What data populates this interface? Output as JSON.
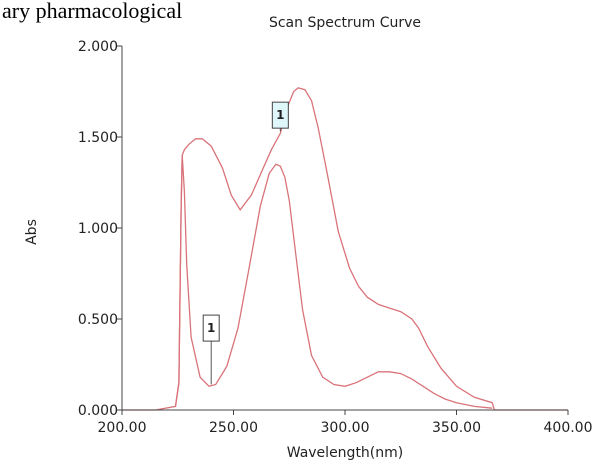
{
  "header_text": "ary pharmacological",
  "chart_data": {
    "type": "line",
    "title": "Scan Spectrum Curve",
    "xlabel": "Wavelength(nm)",
    "ylabel": "Abs",
    "xlim": [
      200,
      400
    ],
    "ylim": [
      0,
      2
    ],
    "x_ticks": [
      "200.00",
      "250.00",
      "300.00",
      "350.00",
      "400.00"
    ],
    "y_ticks": [
      "0.000",
      "0.500",
      "1.000",
      "1.500",
      "2.000"
    ],
    "grid": false,
    "legend": "none",
    "line_color": "#d9737a",
    "series": [
      {
        "x": [
          200,
          215,
          224,
          225.5,
          226.5,
          227,
          228,
          230,
          233,
          236,
          240,
          245,
          249,
          253,
          258,
          263,
          267,
          271,
          274,
          277,
          279,
          282,
          285,
          288,
          292,
          297,
          302,
          306,
          310,
          315,
          320,
          325,
          330,
          333,
          337,
          343,
          350,
          358,
          366,
          367,
          400
        ],
        "y": [
          0,
          0,
          0.02,
          0.15,
          1.1,
          1.4,
          1.43,
          1.46,
          1.49,
          1.49,
          1.45,
          1.33,
          1.18,
          1.1,
          1.18,
          1.32,
          1.43,
          1.52,
          1.66,
          1.75,
          1.77,
          1.76,
          1.7,
          1.55,
          1.3,
          0.98,
          0.78,
          0.68,
          0.62,
          0.58,
          0.56,
          0.54,
          0.5,
          0.45,
          0.35,
          0.23,
          0.13,
          0.07,
          0.04,
          0,
          0
        ]
      },
      {
        "x": [
          224,
          225.5,
          226.5,
          227,
          228,
          229,
          231,
          235,
          239,
          242,
          247,
          252,
          257,
          262,
          266,
          269,
          271,
          273,
          275,
          278,
          281,
          285,
          290,
          295,
          300,
          305,
          310,
          315,
          320,
          325,
          330,
          335,
          340,
          345,
          350,
          358,
          366
        ],
        "y": [
          0.02,
          0.15,
          1.1,
          1.4,
          1.2,
          0.8,
          0.4,
          0.18,
          0.13,
          0.14,
          0.24,
          0.45,
          0.78,
          1.12,
          1.3,
          1.35,
          1.34,
          1.28,
          1.15,
          0.85,
          0.55,
          0.3,
          0.18,
          0.14,
          0.13,
          0.15,
          0.18,
          0.21,
          0.21,
          0.2,
          0.17,
          0.13,
          0.09,
          0.06,
          0.04,
          0.02,
          0.01
        ]
      }
    ],
    "annotations": [
      {
        "text": "1",
        "x": 240,
        "y": 0.13,
        "label_y": 0.45,
        "bg": "#ffffff"
      },
      {
        "text": "1",
        "x": 271,
        "y": 1.52,
        "label_y": 1.62,
        "bg": "#dff6fb"
      }
    ]
  }
}
